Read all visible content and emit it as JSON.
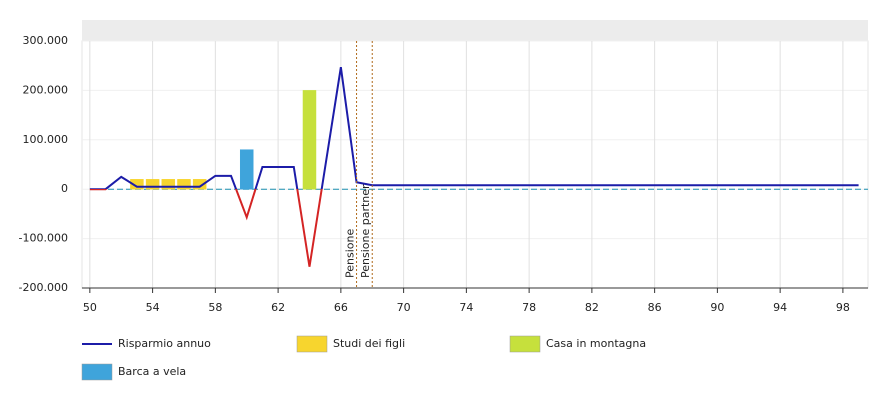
{
  "chart_data": {
    "type": "combo",
    "xlim": [
      49.5,
      99.6
    ],
    "xticks": [
      50,
      54,
      58,
      62,
      66,
      70,
      74,
      78,
      82,
      86,
      90,
      94,
      98
    ],
    "ylim": [
      -200000,
      300000
    ],
    "yticks": [
      {
        "value": -200000,
        "label": "-200.000"
      },
      {
        "value": -100000,
        "label": "-100.000"
      },
      0,
      {
        "value": 100000,
        "label": "100.000"
      },
      {
        "value": 200000,
        "label": "200.000"
      },
      {
        "value": 300000,
        "label": "300.000"
      }
    ],
    "grid": true,
    "series": [
      {
        "name": "Risparmio annuo",
        "type": "line",
        "color": "#1c1ca8",
        "negative_color": "#d42424",
        "x": [
          50,
          51,
          52,
          53,
          54,
          55,
          56,
          57,
          58,
          59,
          60,
          61,
          62,
          63,
          64,
          65,
          66,
          67,
          68,
          69,
          70,
          71,
          72,
          73,
          74,
          75,
          76,
          77,
          78,
          79,
          80,
          81,
          82,
          83,
          84,
          85,
          86,
          87,
          88,
          89,
          90,
          91,
          92,
          93,
          94,
          95,
          96,
          97,
          98,
          99
        ],
        "values": [
          0,
          0,
          25000,
          5000,
          5000,
          5000,
          5000,
          5000,
          27000,
          27000,
          -57000,
          45000,
          45000,
          45000,
          -157000,
          45000,
          247000,
          14000,
          8000,
          8000,
          8000,
          8000,
          8000,
          8000,
          8000,
          8000,
          8000,
          8000,
          8000,
          8000,
          8000,
          8000,
          8000,
          8000,
          8000,
          8000,
          8000,
          8000,
          8000,
          8000,
          8000,
          8000,
          8000,
          8000,
          8000,
          8000,
          8000,
          8000,
          8000,
          8000
        ]
      },
      {
        "name": "Studi dei figli",
        "type": "bar",
        "color": "#f7d52e",
        "x": [
          53,
          54,
          55,
          56,
          57
        ],
        "values": [
          20000,
          20000,
          20000,
          20000,
          20000
        ]
      },
      {
        "name": "Casa in montagna",
        "type": "bar",
        "color": "#c6e03c",
        "x": [
          64
        ],
        "values": [
          200000
        ]
      },
      {
        "name": "Barca a vela",
        "type": "bar",
        "color": "#3fa4db",
        "x": [
          60
        ],
        "values": [
          80000
        ]
      }
    ],
    "annotations": [
      {
        "x": 67,
        "label": "Pensione"
      },
      {
        "x": 68,
        "label": "Pensione partner"
      }
    ],
    "annotation_color": "#b06a1a"
  }
}
